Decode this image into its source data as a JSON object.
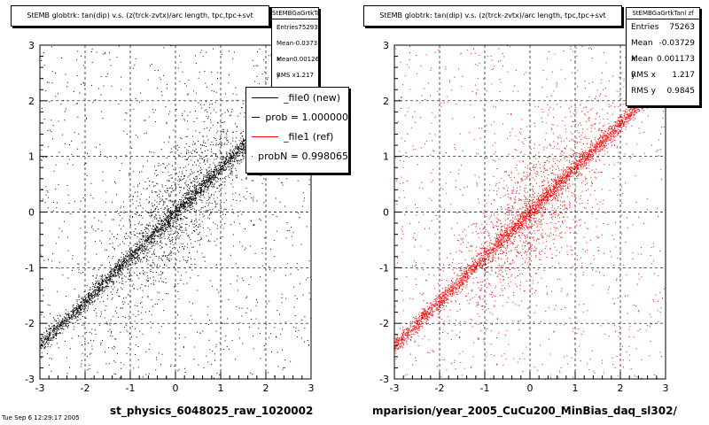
{
  "chart_data": [
    {
      "type": "scatter",
      "title": "StEMB globtrk: tan(dip) v.s. (z(trck-zvtx)/arc length, tpc,tpc+svt",
      "xlabel": "st_physics_6048025_raw_1020002",
      "xlim": [
        -3,
        3
      ],
      "ylim": [
        -3,
        3
      ],
      "xticks": [
        "-3",
        "-2",
        "-1",
        "0",
        "1",
        "2",
        "3"
      ],
      "yticks": [
        "-3",
        "-2",
        "-1",
        "0",
        "1",
        "2",
        "3"
      ],
      "grid": true,
      "marker_color": "#000000",
      "stats": {
        "name": "StEMBGaGrtkTanl zf",
        "rows": [
          {
            "label": "Entries",
            "value": "75293"
          },
          {
            "label": "Mean x",
            "value": "-0.0373"
          },
          {
            "label": "Mean y",
            "value": "0.001264"
          },
          {
            "label": "RMS x",
            "value": "1.217"
          }
        ]
      },
      "legend": {
        "placement": "top-right",
        "entries": [
          {
            "label": "_file0 (new)",
            "color": "#000000"
          },
          {
            "label": "prob = 1.000000",
            "color": "#000000"
          },
          {
            "label": "_file1 (ref)",
            "color": "#ff0000"
          },
          {
            "label": "probN = 0.998065",
            "color": "#ff0000"
          }
        ]
      }
    },
    {
      "type": "scatter",
      "title": "StEMB globtrk: tan(dip) v.s. (z(trck-zvtx)/arc length, tpc,tpc+svt",
      "xlabel": "mparision/year_2005_CuCu200_MinBias_daq_sl302/",
      "xlim": [
        -3,
        3
      ],
      "ylim": [
        -3,
        3
      ],
      "xticks": [
        "-3",
        "-2",
        "-1",
        "0",
        "1",
        "2",
        "3"
      ],
      "yticks": [
        "-3",
        "-2",
        "-1",
        "0",
        "1",
        "2",
        "3"
      ],
      "grid": true,
      "marker_color": "#ff0000",
      "stats": {
        "name": "StEMBGaGrtkTanl zf",
        "rows": [
          {
            "label": "Entries",
            "value": "75263"
          },
          {
            "label": "Mean x",
            "value": "-0.03729"
          },
          {
            "label": "Mean y",
            "value": "0.001173"
          },
          {
            "label": "RMS x",
            "value": "1.217"
          },
          {
            "label": "RMS y",
            "value": "0.9845"
          }
        ]
      }
    }
  ],
  "footer": "Tue Sep 6 12:29:17 2005"
}
